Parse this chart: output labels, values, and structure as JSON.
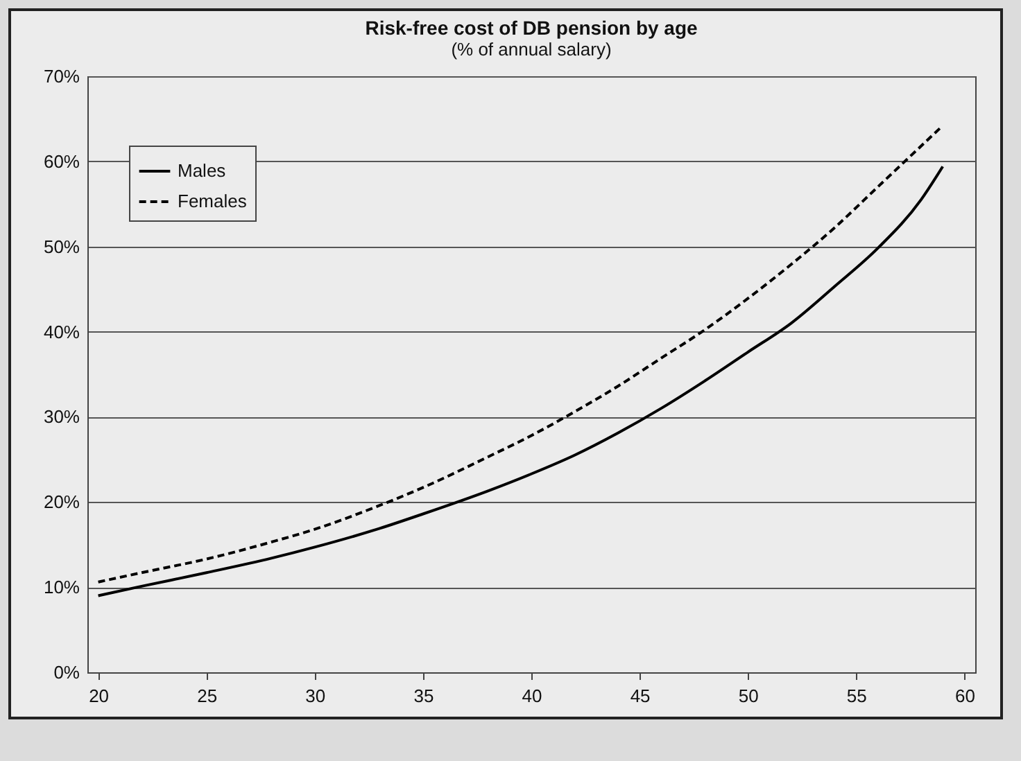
{
  "chart_data": {
    "type": "line",
    "title": "Risk-free cost of DB pension by age",
    "subtitle": "(% of annual salary)",
    "xlim": [
      19.5,
      60.5
    ],
    "xticks": [
      20,
      25,
      30,
      35,
      40,
      45,
      50,
      55,
      60
    ],
    "ylim": [
      0,
      70
    ],
    "yticks": [
      {
        "value": 0,
        "label": "0%"
      },
      {
        "value": 10,
        "label": "10%"
      },
      {
        "value": 20,
        "label": "20%"
      },
      {
        "value": 30,
        "label": "30%"
      },
      {
        "value": 40,
        "label": "40%"
      },
      {
        "value": 50,
        "label": "50%"
      },
      {
        "value": 60,
        "label": "60%"
      },
      {
        "value": 70,
        "label": "70%"
      }
    ],
    "grid": "y",
    "legend": "top left",
    "marker": "none",
    "x": [
      20,
      22,
      25,
      28,
      30,
      33,
      35,
      38,
      40,
      42,
      44,
      46,
      48,
      50,
      52,
      54,
      56,
      58,
      59
    ],
    "series": [
      {
        "name": "Males",
        "color": "#000000",
        "line_style": "solid",
        "values": [
          9.0,
          10.1,
          11.7,
          13.4,
          14.7,
          16.9,
          18.6,
          21.3,
          23.3,
          25.5,
          28.1,
          31.0,
          34.2,
          37.6,
          41.0,
          45.3,
          49.8,
          55.5,
          59.4
        ]
      },
      {
        "name": "Females",
        "color": "#000000",
        "line_style": "dashed",
        "values": [
          10.6,
          11.7,
          13.3,
          15.3,
          16.8,
          19.6,
          21.7,
          25.3,
          27.8,
          30.6,
          33.6,
          36.9,
          40.2,
          43.9,
          47.9,
          52.2,
          57.0,
          61.8,
          64.2
        ]
      }
    ]
  }
}
